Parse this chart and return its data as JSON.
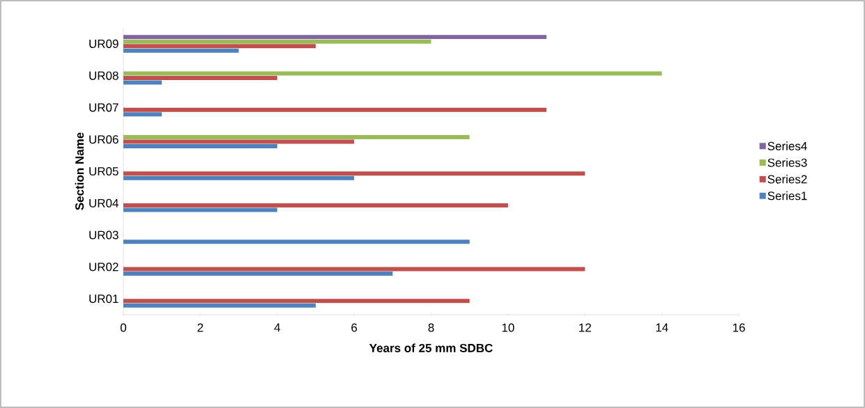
{
  "chart_data": {
    "type": "bar",
    "orientation": "horizontal",
    "xlabel": "Years of 25 mm SDBC",
    "ylabel": "Section Name",
    "categories": [
      "UR09",
      "UR08",
      "UR07",
      "UR06",
      "UR05",
      "UR04",
      "UR03",
      "UR02",
      "UR01"
    ],
    "series": [
      {
        "name": "Series1",
        "color": "#4f81bd",
        "values": [
          3,
          1,
          1,
          4,
          6,
          4,
          9,
          7,
          5
        ]
      },
      {
        "name": "Series2",
        "color": "#c0504d",
        "values": [
          5,
          4,
          11,
          6,
          12,
          10,
          null,
          12,
          9
        ]
      },
      {
        "name": "Series3",
        "color": "#9bbb59",
        "values": [
          8,
          14,
          null,
          9,
          null,
          null,
          null,
          null,
          null
        ]
      },
      {
        "name": "Series4",
        "color": "#8064a2",
        "values": [
          11,
          null,
          null,
          null,
          null,
          null,
          null,
          null,
          null
        ]
      }
    ],
    "xlim": [
      0,
      16
    ],
    "xticks": [
      0,
      2,
      4,
      6,
      8,
      10,
      12,
      14,
      16
    ],
    "legend": "right"
  }
}
